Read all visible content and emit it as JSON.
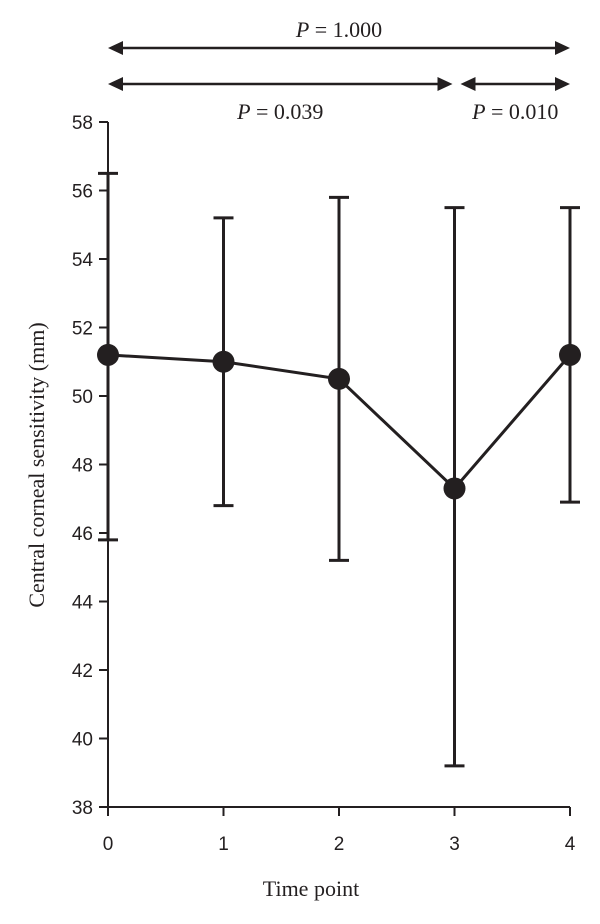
{
  "chart_data": {
    "type": "line",
    "title": "",
    "xlabel": "Time point",
    "ylabel": "Central corneal sensitivity (mm)",
    "xlim": [
      0,
      4
    ],
    "ylim": [
      38,
      58
    ],
    "x_ticks": [
      "0",
      "1",
      "2",
      "3",
      "4"
    ],
    "y_ticks": [
      "38",
      "40",
      "42",
      "44",
      "46",
      "48",
      "50",
      "52",
      "54",
      "56",
      "58"
    ],
    "grid": false,
    "legend": "none",
    "color": "#231f20",
    "series": [
      {
        "x": [
          0,
          1,
          2,
          3,
          4
        ],
        "values": [
          51.2,
          51.0,
          50.5,
          47.3,
          51.2
        ],
        "error_low": [
          45.8,
          46.8,
          45.2,
          39.2,
          46.9
        ],
        "error_high": [
          56.5,
          55.2,
          55.8,
          55.5,
          55.5
        ]
      }
    ],
    "comparisons": [
      {
        "from": 0,
        "to": 4,
        "p_symbol": "P",
        "p_text": " = 1.000"
      },
      {
        "from": 0,
        "to": 3,
        "p_symbol": "P",
        "p_text": " = 0.039"
      },
      {
        "from": 3,
        "to": 4,
        "p_symbol": "P",
        "p_text": " = 0.010"
      }
    ]
  }
}
